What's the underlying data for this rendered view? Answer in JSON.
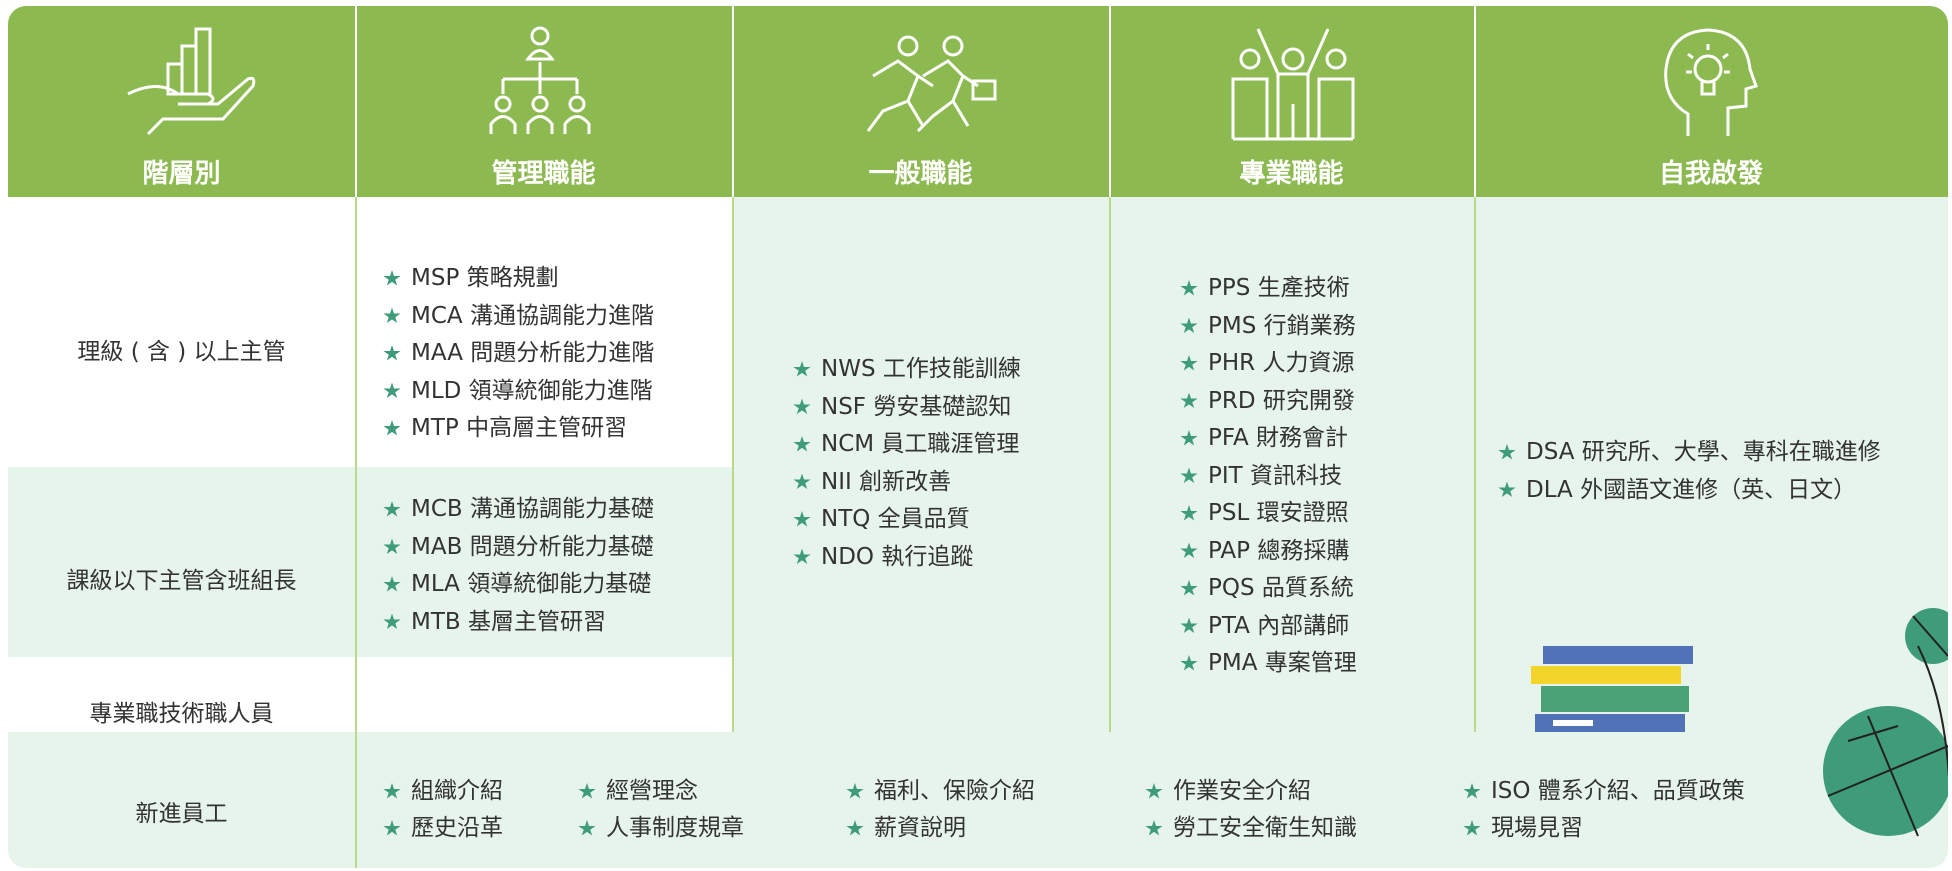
{
  "header": {
    "columns": [
      "階層別",
      "管理職能",
      "一般職能",
      "專業職能",
      "自我啟發"
    ]
  },
  "levels": [
    "理級 ( 含 ) 以上主管",
    "課級以下主管含班組長",
    "專業職技術職人員",
    "新進員工"
  ],
  "courses": {
    "management_upper": [
      "MSP 策略規劃",
      "MCA 溝通協調能力進階",
      "MAA 問題分析能力進階",
      "MLD 領導統御能力進階",
      "MTP 中高層主管研習"
    ],
    "management_lower": [
      "MCB 溝通協調能力基礎",
      "MAB 問題分析能力基礎",
      "MLA 領導統御能力基礎",
      "MTB 基層主管研習"
    ],
    "general": [
      "NWS 工作技能訓練",
      "NSF 勞安基礎認知",
      "NCM 員工職涯管理",
      "NII 創新改善",
      "NTQ 全員品質",
      "NDO 執行追蹤"
    ],
    "professional": [
      "PPS 生產技術",
      "PMS 行銷業務",
      "PHR 人力資源",
      "PRD 研究開發",
      "PFA 財務會計",
      "PIT 資訊科技",
      "PSL 環安證照",
      "PAP 總務採購",
      "PQS 品質系統",
      "PTA 內部講師",
      "PMA 專案管理"
    ],
    "self": [
      "DSA 研究所、大學、專科在職進修",
      "DLA 外國語文進修（英、日文）"
    ]
  },
  "newcomer": [
    [
      "組織介紹",
      "歷史沿革"
    ],
    [
      "經營理念",
      "人事制度規章"
    ],
    [
      "福利、保險介紹",
      "薪資說明"
    ],
    [
      "作業安全介紹",
      "勞工安全衛生知識"
    ],
    [
      "ISO 體系介紹、品質政策",
      "現場見習"
    ]
  ]
}
